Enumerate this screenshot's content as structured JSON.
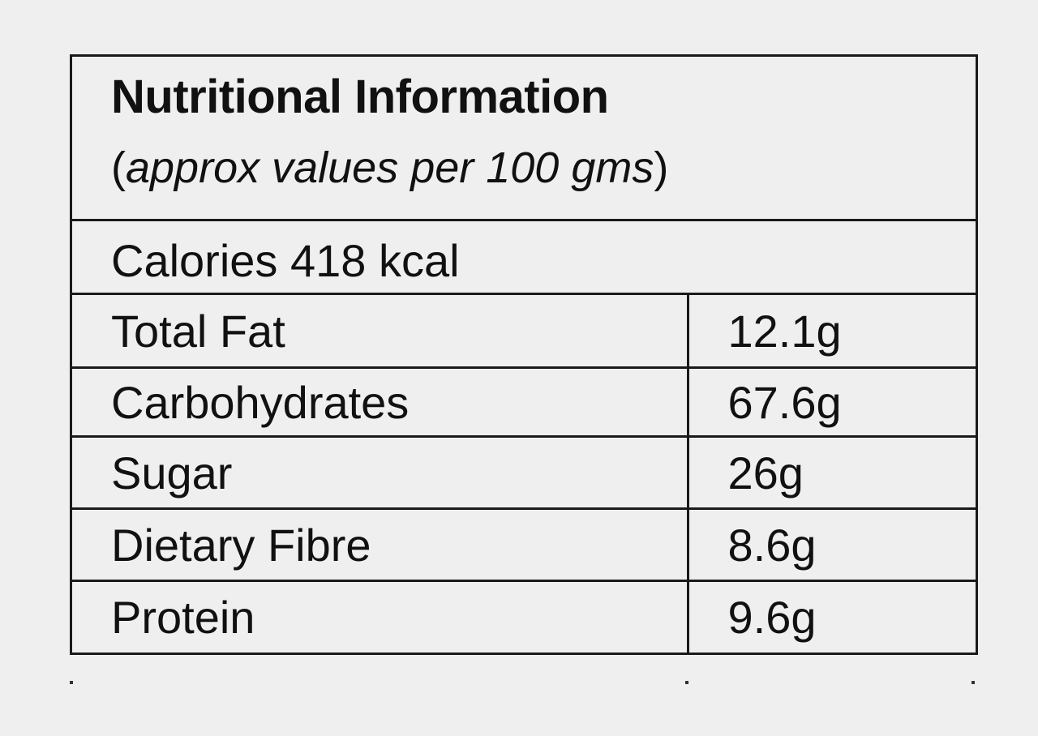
{
  "title": "Nutritional Information",
  "subtitle": {
    "open": "(",
    "text": "approx values per 100 gms",
    "close": ")"
  },
  "calories": "Calories 418 kcal",
  "nutrients": [
    {
      "name": "Total Fat",
      "value": "12.1g"
    },
    {
      "name": "Carbohydrates",
      "value": "67.6g"
    },
    {
      "name": "Sugar",
      "value": "26g"
    },
    {
      "name": "Dietary Fibre",
      "value": "8.6g"
    },
    {
      "name": "Protein",
      "value": "9.6g"
    }
  ]
}
